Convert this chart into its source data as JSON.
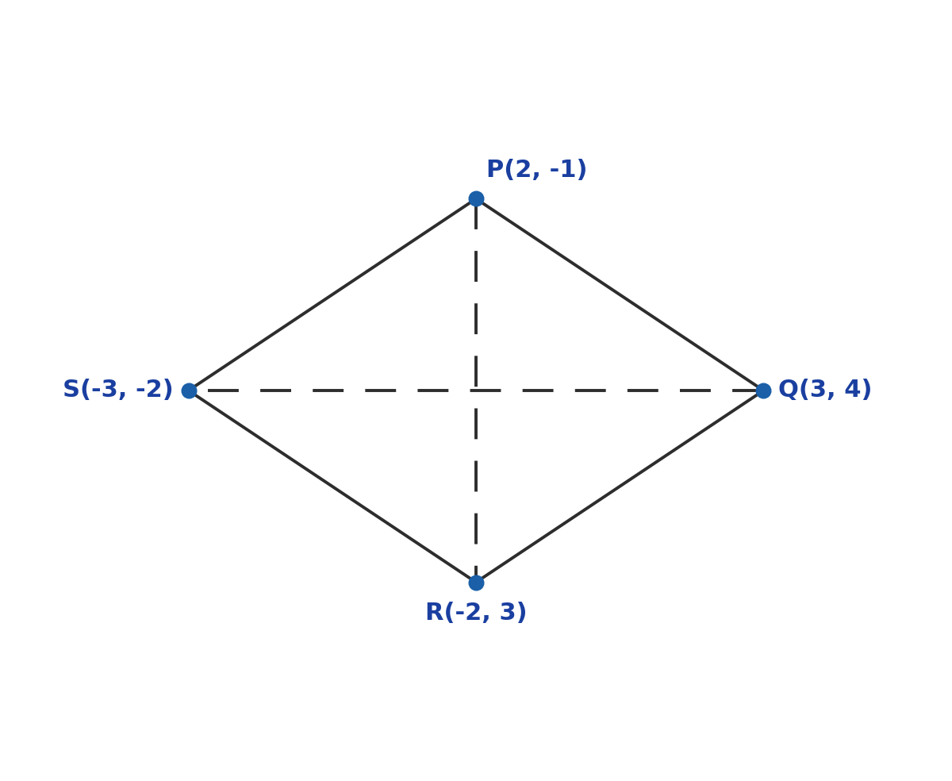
{
  "points": {
    "P": [
      2,
      -1
    ],
    "Q": [
      3,
      4
    ],
    "R": [
      -2,
      3
    ],
    "S": [
      -3,
      -2
    ]
  },
  "point_color": "#1a5fa8",
  "point_size": 180,
  "edge_color": "#2d2d2d",
  "edge_linewidth": 2.8,
  "diagonal_color": "#2d2d2d",
  "diagonal_linewidth": 2.8,
  "label_color": "#1a3fa0",
  "label_fontsize": 22,
  "label_texts": {
    "P": "P(2, -1)",
    "Q": "Q(3, 4)",
    "R": "R(-2, 3)",
    "S": "S(-3, -2)"
  },
  "background_color": "#ffffff",
  "figsize": [
    12.0,
    9.84
  ],
  "dpi": 100
}
